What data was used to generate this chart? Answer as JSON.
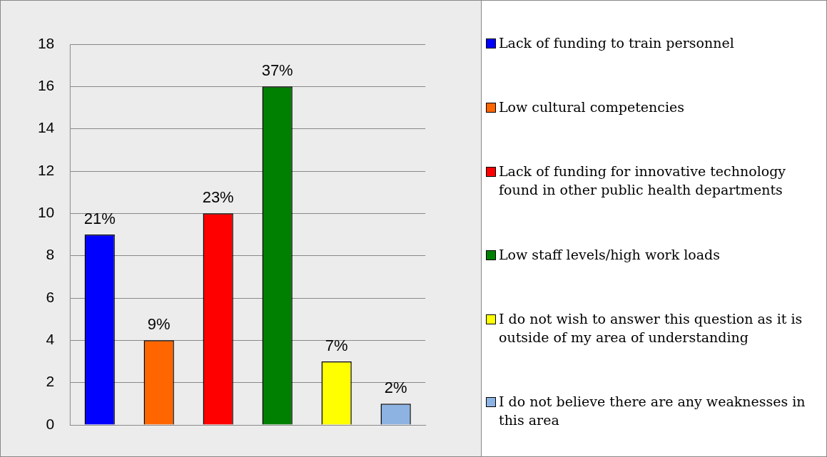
{
  "chart_data": {
    "type": "bar",
    "categories": [
      null,
      null,
      null,
      null,
      null,
      null
    ],
    "series": [
      {
        "name": "Lack of funding to train personnel",
        "color": "#0000ff",
        "values": [
          9,
          null,
          null,
          null,
          null,
          null
        ]
      },
      {
        "name": "Low cultural competencies",
        "color": "#ff6600",
        "values": [
          null,
          4,
          null,
          null,
          null,
          null
        ]
      },
      {
        "name": "Lack of funding for innovative technology found in other public health departments",
        "color": "#ff0000",
        "values": [
          null,
          null,
          10,
          null,
          null,
          null
        ]
      },
      {
        "name": "Low staff levels/high work loads",
        "color": "#008000",
        "values": [
          null,
          null,
          null,
          16,
          null,
          null
        ]
      },
      {
        "name": "I do not wish to answer this question as it is outside of my area of understanding",
        "color": "#ffff00",
        "values": [
          null,
          null,
          null,
          null,
          3,
          null
        ]
      },
      {
        "name": "I do not believe there are any weaknesses in this area",
        "color": "#8db3e2",
        "values": [
          null,
          null,
          null,
          null,
          null,
          1
        ]
      }
    ],
    "annotations": [
      {
        "text": "21%",
        "y": 9
      },
      {
        "text": "9%",
        "y": 4
      },
      {
        "text": "23%",
        "y": 10
      },
      {
        "text": "37%",
        "y": 16
      },
      {
        "text": "7%",
        "y": 3
      },
      {
        "text": "2%",
        "y": 1
      }
    ],
    "ylim": [
      0,
      18
    ],
    "yticks": [
      0,
      2,
      4,
      6,
      8,
      10,
      12,
      14,
      16,
      18
    ],
    "grid": "y",
    "legend": "right",
    "tick_labels": "y"
  }
}
